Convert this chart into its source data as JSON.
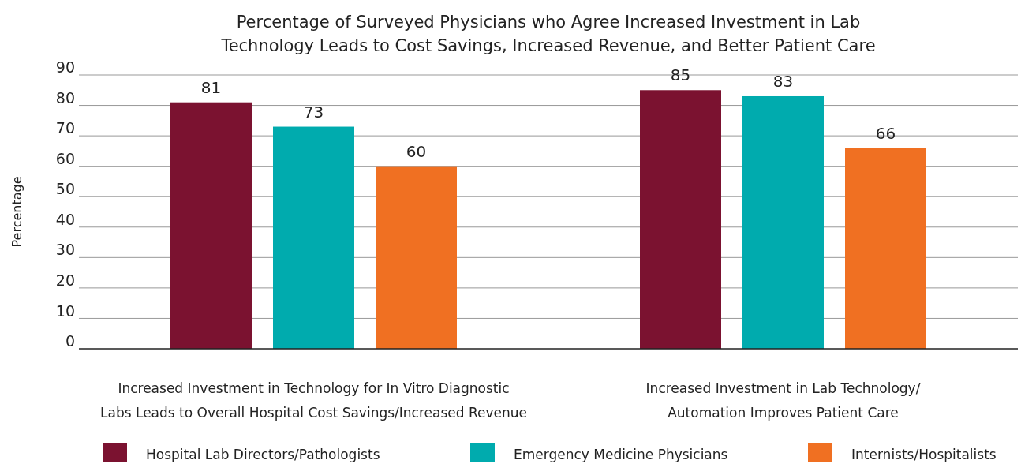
{
  "chart_data": {
    "type": "bar",
    "title": "Percentage of Surveyed Physicians who Agree Increased Investment in Lab Technology Leads to Cost Savings, Increased Revenue, and Better Patient Care",
    "ylabel": "Percentage",
    "categories": [
      "Increased Investment in Technology for In Vitro Diagnostic Labs Leads to Overall Hospital Cost Savings/Increased Revenue",
      "Increased Investment in Lab Technology/ Automation Improves Patient Care"
    ],
    "series": [
      {
        "name": "Hospital Lab Directors/Pathologists",
        "color": "#7b1230",
        "values": [
          81,
          85
        ]
      },
      {
        "name": "Emergency Medicine Physicians",
        "color": "#00abae",
        "values": [
          73,
          83
        ]
      },
      {
        "name": "Internists/Hospitalists",
        "color": "#f07022",
        "values": [
          60,
          66
        ]
      }
    ],
    "ylim": [
      0,
      90
    ],
    "yticks": [
      0,
      10,
      20,
      30,
      40,
      50,
      60,
      70,
      80,
      90
    ],
    "grid": "y",
    "legend": "bottom",
    "data_labels": true
  }
}
